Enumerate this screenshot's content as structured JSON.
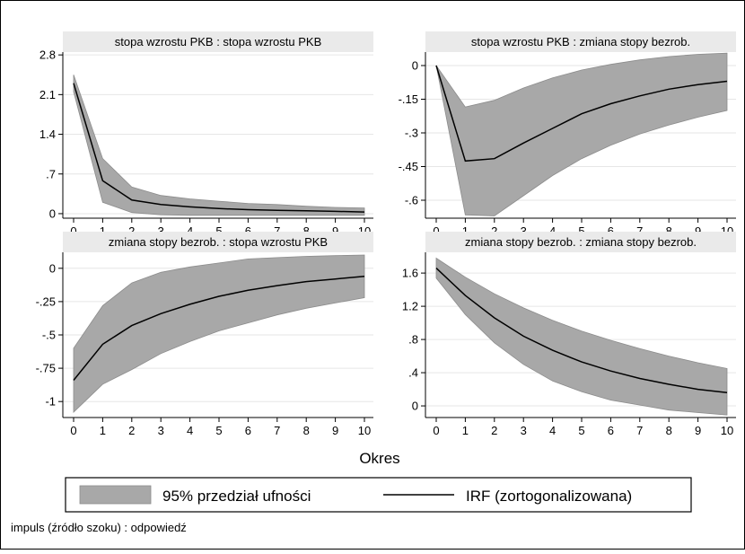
{
  "xlabel": "Okres",
  "note": "impuls (źródło szoku) : odpowiedź",
  "legend": {
    "ci_label": "95% przedział ufności",
    "irf_label": "IRF (zortogonalizowana)"
  },
  "colors": {
    "band": "#a8a8a8",
    "band_stroke": "#8c8c8c",
    "line": "#000000",
    "header": "#eaeaea",
    "grid": "#e6e6e6"
  },
  "chart_data": [
    {
      "type": "area",
      "title": "stopa wzrostu PKB : stopa wzrostu PKB",
      "x": [
        0,
        1,
        2,
        3,
        4,
        5,
        6,
        7,
        8,
        9,
        10
      ],
      "xticks": [
        0,
        1,
        2,
        3,
        4,
        5,
        6,
        7,
        8,
        9,
        10
      ],
      "ylim": [
        -0.08,
        2.85
      ],
      "yticks": [
        0,
        0.7,
        1.4,
        2.1,
        2.8
      ],
      "ytick_labels": [
        "0",
        ".7",
        "1.4",
        "2.1",
        "2.8"
      ],
      "grid": true,
      "series": [
        {
          "role": "irf",
          "values": [
            2.3,
            0.58,
            0.24,
            0.16,
            0.12,
            0.09,
            0.07,
            0.06,
            0.05,
            0.04,
            0.03
          ]
        },
        {
          "role": "ci_lower",
          "values": [
            2.15,
            0.2,
            0.02,
            -0.02,
            -0.03,
            -0.03,
            -0.03,
            -0.03,
            -0.03,
            -0.03,
            -0.03
          ]
        },
        {
          "role": "ci_upper",
          "values": [
            2.45,
            0.97,
            0.47,
            0.32,
            0.26,
            0.22,
            0.18,
            0.16,
            0.13,
            0.11,
            0.1
          ]
        }
      ]
    },
    {
      "type": "area",
      "title": "stopa wzrostu PKB : zmiana stopy bezrob.",
      "x": [
        0,
        1,
        2,
        3,
        4,
        5,
        6,
        7,
        8,
        9,
        10
      ],
      "xticks": [
        0,
        1,
        2,
        3,
        4,
        5,
        6,
        7,
        8,
        9,
        10
      ],
      "ylim": [
        -0.68,
        0.06
      ],
      "yticks": [
        0,
        -0.15,
        -0.3,
        -0.45,
        -0.6
      ],
      "ytick_labels": [
        "0",
        "-.15",
        "-.3",
        "-.45",
        "-.6"
      ],
      "grid": true,
      "series": [
        {
          "role": "irf",
          "values": [
            0,
            -0.425,
            -0.415,
            -0.345,
            -0.28,
            -0.215,
            -0.17,
            -0.135,
            -0.105,
            -0.085,
            -0.07
          ]
        },
        {
          "role": "ci_lower",
          "values": [
            0,
            -0.665,
            -0.67,
            -0.58,
            -0.49,
            -0.415,
            -0.355,
            -0.305,
            -0.265,
            -0.23,
            -0.2
          ]
        },
        {
          "role": "ci_upper",
          "values": [
            0,
            -0.185,
            -0.155,
            -0.1,
            -0.055,
            -0.02,
            0.005,
            0.025,
            0.04,
            0.05,
            0.055
          ]
        }
      ]
    },
    {
      "type": "area",
      "title": "zmiana stopy bezrob. : stopa wzrostu PKB",
      "x": [
        0,
        1,
        2,
        3,
        4,
        5,
        6,
        7,
        8,
        9,
        10
      ],
      "xticks": [
        0,
        1,
        2,
        3,
        4,
        5,
        6,
        7,
        8,
        9,
        10
      ],
      "ylim": [
        -1.12,
        0.12
      ],
      "yticks": [
        0,
        -0.25,
        -0.5,
        -0.75,
        -1
      ],
      "ytick_labels": [
        "0",
        "-.25",
        "-.5",
        "-.75",
        "-1"
      ],
      "grid": true,
      "series": [
        {
          "role": "irf",
          "values": [
            -0.84,
            -0.57,
            -0.43,
            -0.34,
            -0.27,
            -0.21,
            -0.165,
            -0.13,
            -0.1,
            -0.08,
            -0.06
          ]
        },
        {
          "role": "ci_lower",
          "values": [
            -1.08,
            -0.87,
            -0.76,
            -0.64,
            -0.55,
            -0.47,
            -0.41,
            -0.35,
            -0.3,
            -0.26,
            -0.22
          ]
        },
        {
          "role": "ci_upper",
          "values": [
            -0.6,
            -0.28,
            -0.11,
            -0.03,
            0.01,
            0.04,
            0.07,
            0.08,
            0.09,
            0.095,
            0.1
          ]
        }
      ]
    },
    {
      "type": "area",
      "title": "zmiana stopy bezrob. : zmiana stopy bezrob.",
      "x": [
        0,
        1,
        2,
        3,
        4,
        5,
        6,
        7,
        8,
        9,
        10
      ],
      "xticks": [
        0,
        1,
        2,
        3,
        4,
        5,
        6,
        7,
        8,
        9,
        10
      ],
      "ylim": [
        -0.14,
        1.85
      ],
      "yticks": [
        0,
        0.4,
        0.8,
        1.2,
        1.6
      ],
      "ytick_labels": [
        "0",
        ".4",
        ".8",
        "1.2",
        "1.6"
      ],
      "grid": true,
      "series": [
        {
          "role": "irf",
          "values": [
            1.66,
            1.33,
            1.06,
            0.84,
            0.67,
            0.53,
            0.42,
            0.33,
            0.26,
            0.2,
            0.16
          ]
        },
        {
          "role": "ci_lower",
          "values": [
            1.54,
            1.1,
            0.76,
            0.5,
            0.3,
            0.17,
            0.07,
            0.01,
            -0.05,
            -0.08,
            -0.11
          ]
        },
        {
          "role": "ci_upper",
          "values": [
            1.78,
            1.55,
            1.35,
            1.18,
            1.03,
            0.9,
            0.79,
            0.69,
            0.6,
            0.52,
            0.45
          ]
        }
      ]
    }
  ]
}
